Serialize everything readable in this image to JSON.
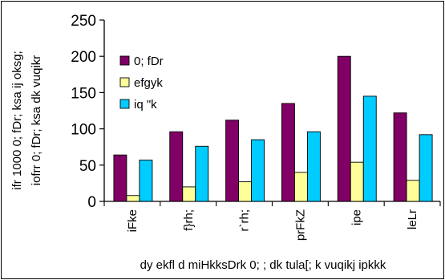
{
  "chart_data": {
    "type": "bar",
    "categories": [
      "iFke",
      "f}rh;",
      "r`rh;",
      "prFkZ",
      "ipe",
      "leLr"
    ],
    "series": [
      {
        "name": "0; fDr",
        "values": [
          64,
          96,
          112,
          135,
          200,
          122
        ],
        "color": "#800066"
      },
      {
        "name": "efgyk",
        "values": [
          8,
          20,
          27,
          40,
          54,
          29
        ],
        "color": "#ffff99"
      },
      {
        "name": "iq \"k",
        "values": [
          57,
          76,
          85,
          96,
          145,
          92
        ],
        "color": "#00ccff"
      }
    ],
    "yticks": [
      0,
      50,
      100,
      150,
      200,
      250
    ],
    "ylim": [
      0,
      250
    ],
    "ylabel_lines": [
      "ifr 1000 0; fDr; ksa ij oksg;",
      "iofrr 0; fDr; ksa dk vuqikr"
    ],
    "xlabel": "dy ekfl d miHkksDrk 0; ; dk tula[; k vuqikj ipkkk",
    "legend_position": "right",
    "grid": false
  }
}
